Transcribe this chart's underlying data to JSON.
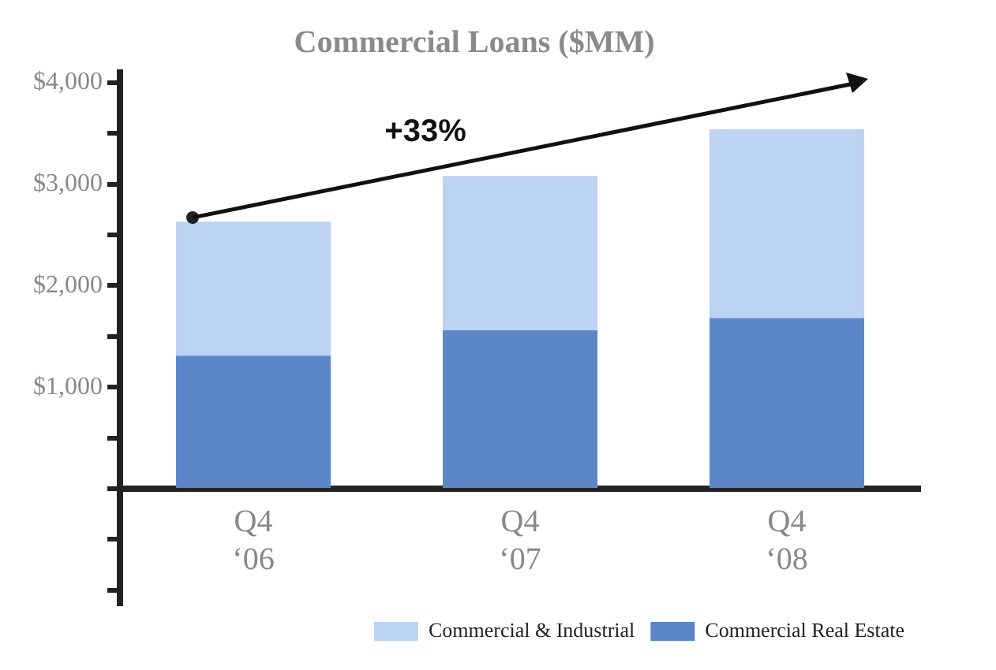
{
  "chart_data": {
    "type": "bar",
    "title": "Commercial Loans ($MM)",
    "categories": [
      "Q4 ‘06",
      "Q4 ‘07",
      "Q4 ‘08"
    ],
    "stacked": true,
    "series": [
      {
        "name": "Commercial Real Estate",
        "color": "#5b86c8",
        "values": [
          1310,
          1560,
          1680
        ]
      },
      {
        "name": "Commercial & Industrial",
        "color": "#bcd3f2",
        "values": [
          1320,
          1520,
          1860
        ]
      }
    ],
    "ylim": [
      -1150,
      4100
    ],
    "yticks": [
      {
        "value": -1000,
        "label": null
      },
      {
        "value": -500,
        "label": null
      },
      {
        "value": 0,
        "label": null
      },
      {
        "value": 500,
        "label": null
      },
      {
        "value": 1000,
        "label": "$1,000"
      },
      {
        "value": 1500,
        "label": null
      },
      {
        "value": 2000,
        "label": "$2,000"
      },
      {
        "value": 2500,
        "label": null
      },
      {
        "value": 3000,
        "label": "$3,000"
      },
      {
        "value": 3500,
        "label": null
      },
      {
        "value": 4000,
        "label": "$4,000"
      }
    ],
    "grid": false,
    "legend": "bottom right",
    "annotations": [
      "+33%"
    ]
  }
}
